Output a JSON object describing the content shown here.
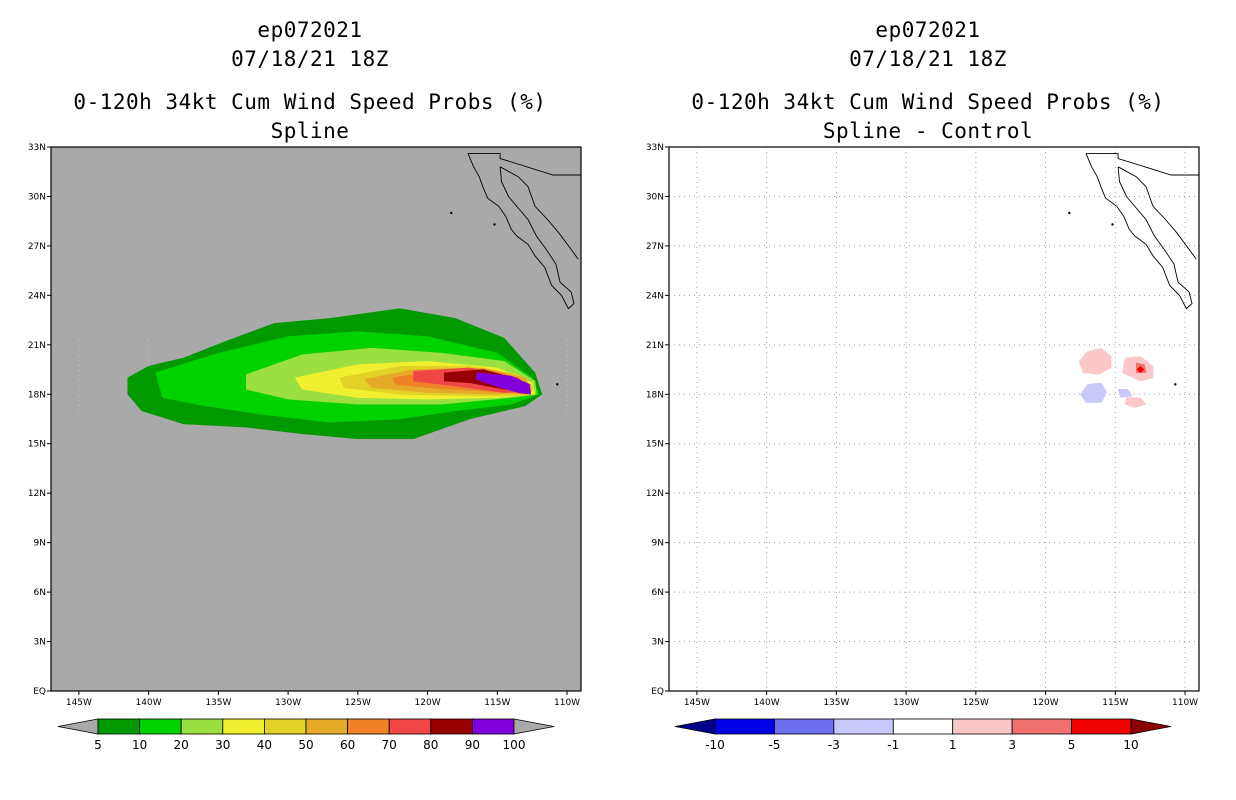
{
  "panels": [
    {
      "title_line1": "ep072021",
      "title_line2": "07/18/21 18Z",
      "subtitle_line1": "0-120h 34kt Cum Wind Speed Probs (%)",
      "subtitle_line2": "Spline"
    },
    {
      "title_line1": "ep072021",
      "title_line2": "07/18/21 18Z",
      "subtitle_line1": "0-120h 34kt Cum Wind Speed Probs (%)",
      "subtitle_line2": "Spline - Control"
    }
  ],
  "chart_data": [
    {
      "type": "heatmap",
      "title": "0-120h 34kt Cum Wind Speed Probs (%) Spline",
      "xlim": [
        -147,
        -109
      ],
      "ylim": [
        0,
        33
      ],
      "x_ticks": [
        -145,
        -140,
        -135,
        -130,
        -125,
        -120,
        -115,
        -110
      ],
      "x_tick_labels": [
        "145W",
        "140W",
        "135W",
        "130W",
        "125W",
        "120W",
        "115W",
        "110W"
      ],
      "y_ticks": [
        0,
        3,
        6,
        9,
        12,
        15,
        18,
        21,
        24,
        27,
        30,
        33
      ],
      "y_tick_labels": [
        "EQ",
        "3N",
        "6N",
        "9N",
        "12N",
        "15N",
        "18N",
        "21N",
        "24N",
        "27N",
        "30N",
        "33N"
      ],
      "background_color": "#a9a9a9",
      "colorbar": {
        "labels": [
          "5",
          "10",
          "20",
          "30",
          "40",
          "50",
          "60",
          "70",
          "80",
          "90",
          "100"
        ],
        "colors": [
          "#009900",
          "#00d200",
          "#9be040",
          "#f0f030",
          "#e2d228",
          "#e4aa28",
          "#f08228",
          "#f04646",
          "#960000",
          "#8200dc"
        ],
        "end_colors": [
          "#a9a9a9",
          "#a9a9a9"
        ]
      },
      "contours": [
        {
          "level": 5,
          "color": "#009900",
          "points": [
            [
              -141.5,
              19
            ],
            [
              -140,
              19.7
            ],
            [
              -137.5,
              20.2
            ],
            [
              -134.5,
              21.2
            ],
            [
              -131,
              22.3
            ],
            [
              -127,
              22.6
            ],
            [
              -122,
              23.2
            ],
            [
              -118,
              22.6
            ],
            [
              -114.5,
              21.4
            ],
            [
              -112.3,
              19.3
            ],
            [
              -111.8,
              18
            ],
            [
              -113,
              17.3
            ],
            [
              -117,
              16.5
            ],
            [
              -121,
              15.3
            ],
            [
              -125,
              15.3
            ],
            [
              -129,
              15.6
            ],
            [
              -133,
              16
            ],
            [
              -137.5,
              16.2
            ],
            [
              -140.5,
              17
            ],
            [
              -141.5,
              18
            ]
          ]
        },
        {
          "level": 10,
          "color": "#00d200",
          "points": [
            [
              -139.5,
              19.3
            ],
            [
              -135,
              20.5
            ],
            [
              -130,
              21.5
            ],
            [
              -125,
              21.8
            ],
            [
              -120,
              21.5
            ],
            [
              -115,
              20.5
            ],
            [
              -112.5,
              19
            ],
            [
              -112,
              18
            ],
            [
              -114,
              17.4
            ],
            [
              -118,
              17
            ],
            [
              -122,
              16.5
            ],
            [
              -127,
              16.3
            ],
            [
              -132,
              16.8
            ],
            [
              -136,
              17.3
            ],
            [
              -139,
              17.8
            ]
          ]
        },
        {
          "level": 20,
          "color": "#9be040",
          "points": [
            [
              -133,
              19.2
            ],
            [
              -129,
              20.4
            ],
            [
              -124,
              20.8
            ],
            [
              -119,
              20.5
            ],
            [
              -114.5,
              20
            ],
            [
              -112.3,
              18.8
            ],
            [
              -112.2,
              18
            ],
            [
              -114,
              17.8
            ],
            [
              -119,
              17.4
            ],
            [
              -125,
              17.4
            ],
            [
              -130,
              17.7
            ],
            [
              -133,
              18.3
            ]
          ]
        },
        {
          "level": 30,
          "color": "#f0f030",
          "points": [
            [
              -129.5,
              19
            ],
            [
              -125,
              19.8
            ],
            [
              -120,
              20
            ],
            [
              -115,
              19.6
            ],
            [
              -112.5,
              18.7
            ],
            [
              -112.3,
              18
            ],
            [
              -115,
              17.8
            ],
            [
              -120,
              17.7
            ],
            [
              -125,
              17.8
            ],
            [
              -129,
              18.3
            ]
          ]
        },
        {
          "level": 40,
          "color": "#e2d228",
          "points": [
            [
              -126.3,
              19
            ],
            [
              -122,
              19.7
            ],
            [
              -117,
              19.7
            ],
            [
              -113.5,
              19.2
            ],
            [
              -112.4,
              18.4
            ],
            [
              -113,
              17.9
            ],
            [
              -117,
              17.9
            ],
            [
              -122,
              18
            ],
            [
              -126,
              18.4
            ]
          ]
        },
        {
          "level": 50,
          "color": "#e4aa28",
          "points": [
            [
              -124.5,
              18.9
            ],
            [
              -121,
              19.5
            ],
            [
              -116,
              19.6
            ],
            [
              -113,
              19
            ],
            [
              -112.5,
              18.2
            ],
            [
              -115,
              18
            ],
            [
              -120,
              18.1
            ],
            [
              -124,
              18.4
            ]
          ]
        },
        {
          "level": 60,
          "color": "#f08228",
          "points": [
            [
              -122.5,
              19
            ],
            [
              -119,
              19.5
            ],
            [
              -115,
              19.4
            ],
            [
              -112.6,
              18.6
            ],
            [
              -112.8,
              18
            ],
            [
              -116,
              18.2
            ],
            [
              -120,
              18.4
            ],
            [
              -122.3,
              18.6
            ]
          ]
        },
        {
          "level": 70,
          "color": "#f04646",
          "points": [
            [
              -121,
              19.4
            ],
            [
              -117,
              19.6
            ],
            [
              -113.5,
              19
            ],
            [
              -112.6,
              18.2
            ],
            [
              -114.5,
              18.1
            ],
            [
              -118,
              18.5
            ],
            [
              -121,
              18.8
            ]
          ]
        },
        {
          "level": 80,
          "color": "#960000",
          "points": [
            [
              -118.8,
              19.3
            ],
            [
              -116,
              19.5
            ],
            [
              -113.5,
              18.9
            ],
            [
              -112.7,
              18.2
            ],
            [
              -114.5,
              18.3
            ],
            [
              -117,
              18.7
            ],
            [
              -118.8,
              18.8
            ]
          ]
        },
        {
          "level": 90,
          "color": "#8200dc",
          "points": [
            [
              -116.5,
              19.3
            ],
            [
              -114,
              19.1
            ],
            [
              -112.7,
              18.6
            ],
            [
              -112.6,
              18
            ],
            [
              -113.5,
              18.1
            ],
            [
              -115.5,
              18.6
            ],
            [
              -116.5,
              18.9
            ]
          ]
        }
      ]
    },
    {
      "type": "heatmap",
      "title": "0-120h 34kt Cum Wind Speed Probs (%) Spline - Control",
      "xlim": [
        -147,
        -109
      ],
      "ylim": [
        0,
        33
      ],
      "x_ticks": [
        -145,
        -140,
        -135,
        -130,
        -125,
        -120,
        -115,
        -110
      ],
      "x_tick_labels": [
        "145W",
        "140W",
        "135W",
        "130W",
        "125W",
        "120W",
        "115W",
        "110W"
      ],
      "y_ticks": [
        0,
        3,
        6,
        9,
        12,
        15,
        18,
        21,
        24,
        27,
        30,
        33
      ],
      "y_tick_labels": [
        "EQ",
        "3N",
        "6N",
        "9N",
        "12N",
        "15N",
        "18N",
        "21N",
        "24N",
        "27N",
        "30N",
        "33N"
      ],
      "background_color": "#ffffff",
      "grid": true,
      "colorbar": {
        "labels": [
          "-10",
          "-5",
          "-3",
          "-1",
          "1",
          "3",
          "5",
          "10"
        ],
        "colors": [
          "#0000e6",
          "#6e6ef0",
          "#c8c8fa",
          "#ffffff",
          "#fac8c8",
          "#f07070",
          "#f00000"
        ],
        "end_colors": [
          "#00008c",
          "#8c0000"
        ]
      },
      "contours": [
        {
          "level": 1,
          "color": "#fac8c8",
          "points": [
            [
              -117,
              20.6
            ],
            [
              -116,
              20.8
            ],
            [
              -115.3,
              20.3
            ],
            [
              -115.3,
              19.6
            ],
            [
              -116.2,
              19.2
            ],
            [
              -117.3,
              19.3
            ],
            [
              -117.6,
              20
            ]
          ]
        },
        {
          "level": 1,
          "color": "#fac8c8",
          "points": [
            [
              -114.3,
              20.2
            ],
            [
              -113.2,
              20.3
            ],
            [
              -112.3,
              19.7
            ],
            [
              -112.3,
              19
            ],
            [
              -113.2,
              18.8
            ],
            [
              -114.5,
              19.3
            ]
          ]
        },
        {
          "level": 1,
          "color": "#fac8c8",
          "points": [
            [
              -114.2,
              17.8
            ],
            [
              -113.2,
              17.8
            ],
            [
              -112.8,
              17.4
            ],
            [
              -113.6,
              17.2
            ],
            [
              -114.3,
              17.4
            ]
          ]
        },
        {
          "level": -1,
          "color": "#c8c8fa",
          "points": [
            [
              -117,
              18.6
            ],
            [
              -116,
              18.7
            ],
            [
              -115.6,
              18.1
            ],
            [
              -116,
              17.5
            ],
            [
              -117.1,
              17.5
            ],
            [
              -117.5,
              18
            ]
          ]
        },
        {
          "level": -1,
          "color": "#c8c8fa",
          "points": [
            [
              -114.8,
              18.3
            ],
            [
              -114.1,
              18.3
            ],
            [
              -113.8,
              17.9
            ],
            [
              -114.6,
              17.8
            ]
          ]
        },
        {
          "level": 3,
          "color": "#f07070",
          "points": [
            [
              -113.5,
              19.9
            ],
            [
              -112.9,
              19.8
            ],
            [
              -112.8,
              19.3
            ],
            [
              -113.5,
              19.3
            ]
          ]
        },
        {
          "level": 5,
          "color": "#f00000",
          "points": [
            [
              -113.2,
              19.7
            ],
            [
              -112.95,
              19.5
            ],
            [
              -113.2,
              19.3
            ],
            [
              -113.45,
              19.5
            ]
          ]
        }
      ]
    }
  ]
}
